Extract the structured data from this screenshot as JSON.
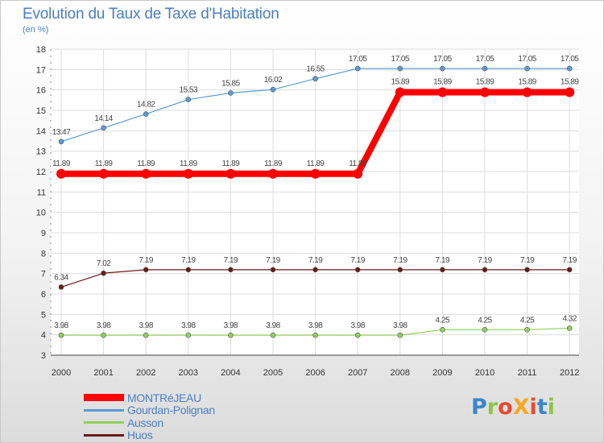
{
  "header": {
    "title": "Evolution du Taux de Taxe d'Habitation",
    "subtitle": "(en %)"
  },
  "logo": {
    "text": "ProXiti",
    "colors": [
      "#3a86c8",
      "#8cc63e",
      "#e8482b",
      "#f7a823",
      "#e8482b",
      "#3a86c8",
      "#8cc63e"
    ]
  },
  "chart_data": {
    "type": "line",
    "x": [
      "2000",
      "2001",
      "2002",
      "2003",
      "2004",
      "2005",
      "2006",
      "2007",
      "2008",
      "2009",
      "2010",
      "2011",
      "2012"
    ],
    "ylim": [
      3,
      18
    ],
    "yticks": [
      "3",
      "4",
      "5",
      "6",
      "7",
      "8",
      "9",
      "10",
      "11",
      "12",
      "13",
      "14",
      "15",
      "16",
      "17",
      "18"
    ],
    "grid": true,
    "legend_position": "bottom-left",
    "series": [
      {
        "name": "MONTRéJEAU",
        "color": "#ff0000",
        "values": [
          11.89,
          11.89,
          11.89,
          11.89,
          11.89,
          11.89,
          11.89,
          11.89,
          15.89,
          15.89,
          15.89,
          15.89,
          15.89
        ],
        "labels": [
          "11.89",
          "11.89",
          "11.89",
          "11.89",
          "11.89",
          "11.89",
          "11.89",
          "11.89",
          "15.89",
          "15.89",
          "15.89",
          "15.89",
          "15.89"
        ]
      },
      {
        "name": "Gourdan-Polignan",
        "color": "#5b9bd5",
        "values": [
          13.47,
          14.14,
          14.82,
          15.53,
          15.85,
          16.02,
          16.55,
          17.05,
          17.05,
          17.05,
          17.05,
          17.05,
          17.05
        ],
        "labels": [
          "13.47",
          "14.14",
          "14.82",
          "15.53",
          "15.85",
          "16.02",
          "16.55",
          "17.05",
          "17.05",
          "17.05",
          "17.05",
          "17.05",
          "17.05"
        ]
      },
      {
        "name": "Ausson",
        "color": "#8ed15c",
        "values": [
          3.98,
          3.98,
          3.98,
          3.98,
          3.98,
          3.98,
          3.98,
          3.98,
          3.98,
          4.25,
          4.25,
          4.25,
          4.32
        ],
        "labels": [
          "3.98",
          "3.98",
          "3.98",
          "3.98",
          "3.98",
          "3.98",
          "3.98",
          "3.98",
          "3.98",
          "4.25",
          "4.25",
          "4.25",
          "4.32"
        ]
      },
      {
        "name": "Huos",
        "color": "#6b1a1a",
        "values": [
          6.34,
          7.02,
          7.19,
          7.19,
          7.19,
          7.19,
          7.19,
          7.19,
          7.19,
          7.19,
          7.19,
          7.19,
          7.19
        ],
        "labels": [
          "6.34",
          "7.02",
          "7.19",
          "7.19",
          "7.19",
          "7.19",
          "7.19",
          "7.19",
          "7.19",
          "7.19",
          "7.19",
          "7.19",
          "7.19"
        ]
      }
    ]
  }
}
